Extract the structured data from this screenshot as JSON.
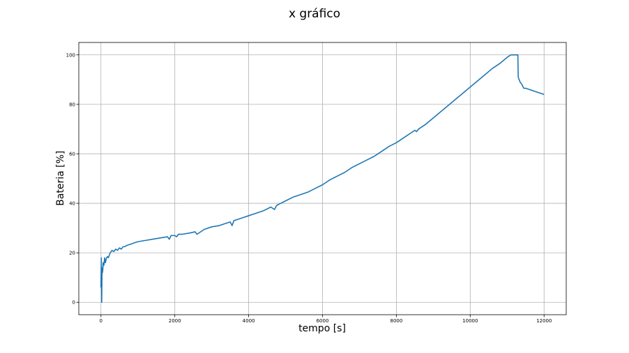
{
  "chart_data": {
    "type": "line",
    "title": "x gráfico",
    "xlabel": "tempo [s]",
    "ylabel": "Bateria [%]",
    "xlim": [
      -600,
      12600
    ],
    "ylim": [
      -5,
      105
    ],
    "xticks": [
      0,
      2000,
      4000,
      6000,
      8000,
      10000,
      12000
    ],
    "yticks": [
      0,
      20,
      40,
      60,
      80,
      100
    ],
    "grid": true,
    "series": [
      {
        "color": "#1f77b4",
        "x": [
          0,
          10,
          20,
          30,
          40,
          50,
          60,
          80,
          100,
          120,
          150,
          180,
          200,
          250,
          300,
          350,
          400,
          450,
          500,
          550,
          600,
          650,
          700,
          800,
          900,
          1000,
          1200,
          1400,
          1600,
          1800,
          1850,
          1900,
          2000,
          2050,
          2100,
          2200,
          2400,
          2550,
          2600,
          2800,
          3000,
          3200,
          3400,
          3500,
          3550,
          3600,
          3700,
          3800,
          4000,
          4200,
          4400,
          4600,
          4700,
          4750,
          4800,
          5000,
          5200,
          5400,
          5600,
          5800,
          6000,
          6200,
          6400,
          6600,
          6800,
          7000,
          7200,
          7400,
          7600,
          7800,
          8000,
          8200,
          8400,
          8500,
          8550,
          8600,
          8800,
          9000,
          9200,
          9400,
          9600,
          9800,
          10000,
          10200,
          10400,
          10600,
          10800,
          11000,
          11100,
          11200,
          11290,
          11300,
          11350,
          11400,
          11450,
          11500,
          11600,
          11800,
          12000
        ],
        "y": [
          6,
          18,
          0,
          14,
          12,
          13,
          16,
          15,
          18,
          16,
          18,
          18.5,
          18,
          20,
          21,
          20.5,
          21.5,
          21,
          22,
          21.5,
          22.5,
          22.5,
          23,
          23.5,
          24,
          24.5,
          25,
          25.5,
          26,
          26.5,
          25.5,
          27,
          27,
          26.5,
          27.5,
          27.5,
          28,
          28.5,
          27.5,
          29.5,
          30.5,
          31,
          32,
          32.5,
          31,
          33,
          33.5,
          34,
          35,
          36,
          37,
          38.5,
          37.5,
          39,
          39.5,
          41,
          42.5,
          43.5,
          44.5,
          46,
          47.5,
          49.5,
          51,
          52.5,
          54.5,
          56,
          57.5,
          59,
          61,
          63,
          64.5,
          66.5,
          68.5,
          69.5,
          69,
          70,
          72,
          74.5,
          77,
          79.5,
          82,
          84.5,
          87,
          89.5,
          92,
          94.5,
          96.5,
          99,
          100,
          100,
          100,
          91,
          89,
          88,
          86.5,
          86.5,
          86,
          85,
          84
        ]
      }
    ]
  }
}
